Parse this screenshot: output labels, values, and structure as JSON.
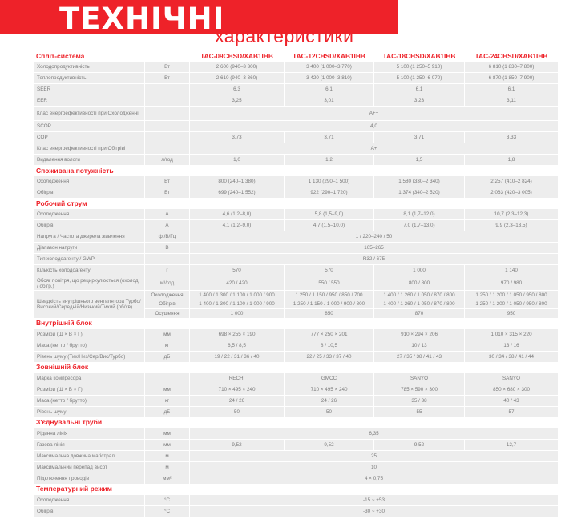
{
  "header": {
    "title_main": "ТЕХНІЧНІ",
    "title_sub": "характеристики"
  },
  "models": [
    "TAC-09CHSD/XAB1IHB",
    "TAC-12CHSD/XAB1IHB",
    "TAC-18CHSD/XAB1IHB",
    "TAC-24CHSD/XAB1IHB"
  ],
  "colors": {
    "accent": "#ee2229",
    "row_bg": "#ededed",
    "text": "#7a7a7a"
  },
  "sections": [
    {
      "title": "Спліт-система",
      "show_models": true,
      "rows": [
        {
          "label": "Холодопродуктивність",
          "unit": "Вт",
          "values": [
            "2 600 (940–3 300)",
            "3 400 (1 000–3 770)",
            "5 100 (1 250–5 910)",
            "6 810 (1 830–7 800)"
          ]
        },
        {
          "label": "Теплопродуктивність",
          "unit": "Вт",
          "values": [
            "2 610 (940–3 360)",
            "3 420 (1 000–3 810)",
            "5 100 (1 250–6 070)",
            "6 870 (1 850–7 900)"
          ]
        },
        {
          "label": "SEER",
          "unit": "",
          "values": [
            "6,3",
            "6,1",
            "6,1",
            "6,1"
          ]
        },
        {
          "label": "EER",
          "unit": "",
          "values": [
            "3,25",
            "3,01",
            "3,23",
            "3,11"
          ]
        },
        {
          "label": "Клас енергоефективності при Охолодженні",
          "unit": "",
          "values": [
            "A++"
          ],
          "tall": true
        },
        {
          "label": "SCOP",
          "unit": "",
          "values": [
            "4,0"
          ]
        },
        {
          "label": "COP",
          "unit": "",
          "values": [
            "3,73",
            "3,71",
            "3,71",
            "3,33"
          ]
        },
        {
          "label": "Клас енергоефективності при Обігріві",
          "unit": "",
          "values": [
            "A+"
          ]
        },
        {
          "label": "Видалення вологи",
          "unit": "л/год",
          "values": [
            "1,0",
            "1,2",
            "1,5",
            "1,8"
          ]
        }
      ]
    },
    {
      "title": "Споживана потужність",
      "rows": [
        {
          "label": "Охолодження",
          "unit": "Вт",
          "values": [
            "800 (240–1 380)",
            "1 130 (290–1 500)",
            "1 580 (330–2 340)",
            "2 257 (410–2 824)"
          ]
        },
        {
          "label": "Обігрів",
          "unit": "Вт",
          "values": [
            "699 (240–1 552)",
            "922 (290–1 720)",
            "1 374 (340–2 520)",
            "2 063 (420–3 005)"
          ]
        }
      ]
    },
    {
      "title": "Робочий струм",
      "rows": [
        {
          "label": "Охолодження",
          "unit": "А",
          "values": [
            "4,6 (1,2–8,0)",
            "5,8 (1,5–9,0)",
            "8,1 (1,7–12,0)",
            "10,7 (2,3–12,3)"
          ]
        },
        {
          "label": "Обігрів",
          "unit": "А",
          "values": [
            "4,1 (1,2–9,0)",
            "4,7 (1,5–10,0)",
            "7,0 (1,7–13,0)",
            "9,9 (2,3–13,5)"
          ]
        },
        {
          "label": "Напруга / Частота джерела живлення",
          "unit": "ф./В/Гц",
          "values": [
            "1 / 220–240 / 50"
          ]
        },
        {
          "label": "Діапазон напруги",
          "unit": "В",
          "values": [
            "165–265"
          ]
        },
        {
          "label": "Тип холодоагенту / GWP",
          "unit": "",
          "values": [
            "R32 / 675"
          ]
        },
        {
          "label": "Кількість холодоагенту",
          "unit": "г",
          "values": [
            "570",
            "570",
            "1 000",
            "1 140"
          ]
        },
        {
          "label": "Обсяг повітря, що рециркулюється (охолод. / обігр.)",
          "unit": "м³/год",
          "values": [
            "420 / 420",
            "550 / 550",
            "800 / 800",
            "970 / 980"
          ],
          "tall": true
        }
      ],
      "fan": {
        "label": "Швидкість внутрішнього вентилятора Турбо/Високий/Середній/Низький/Тихий (об/хв)",
        "modes": [
          {
            "mode": "Охолодження",
            "values": [
              "1 400 / 1 300 / 1 100 / 1 000 / 900",
              "1 250 / 1 150 / 950 / 850 / 700",
              "1 400 / 1 260 / 1 050 / 870 / 800",
              "1 250 / 1 200 / 1 050 / 950 / 800"
            ]
          },
          {
            "mode": "Обігрів",
            "values": [
              "1 400 / 1 300 / 1 100 / 1 000 / 900",
              "1 250 / 1 150 / 1 000 / 900 / 800",
              "1 400 / 1 260 / 1 050 / 870 / 800",
              "1 250 / 1 200 / 1 050 / 950 / 800"
            ]
          },
          {
            "mode": "Осушення",
            "values": [
              "1 000",
              "850",
              "870",
              "950"
            ]
          }
        ]
      }
    },
    {
      "title": "Внутрішній блок",
      "rows": [
        {
          "label": "Розміри (Ш × В × Г)",
          "unit": "мм",
          "values": [
            "698 × 255 × 190",
            "777 × 250 × 201",
            "910 × 294 × 206",
            "1 010 × 315 × 220"
          ]
        },
        {
          "label": "Маса (нетто / брутто)",
          "unit": "кг",
          "values": [
            "6,5 / 8,5",
            "8 / 10,5",
            "10 / 13",
            "13 / 16"
          ]
        },
        {
          "label": "Рівень шуму (Тих/Низ/Сер/Вис/Турбо)",
          "unit": "дБ",
          "values": [
            "19 / 22 / 31 / 36 / 40",
            "22 / 25 / 33 / 37 / 40",
            "27 / 35 / 38 / 41 / 43",
            "30 / 34 / 38 / 41 / 44"
          ]
        }
      ]
    },
    {
      "title": "Зовнішній блок",
      "rows": [
        {
          "label": "Марка компресора",
          "unit": "",
          "values": [
            "RECHI",
            "GMCC",
            "SANYO",
            "SANYO"
          ]
        },
        {
          "label": "Розміри (Ш × В × Г)",
          "unit": "мм",
          "values": [
            "710 × 495 × 240",
            "710 × 495 × 240",
            "785 × 590 × 300",
            "850 × 680 × 300"
          ]
        },
        {
          "label": "Маса (нетто / брутто)",
          "unit": "кг",
          "values": [
            "24 / 26",
            "24 / 26",
            "35 / 38",
            "40 / 43"
          ]
        },
        {
          "label": "Рівень шуму",
          "unit": "дБ",
          "values": [
            "50",
            "50",
            "55",
            "57"
          ]
        }
      ]
    },
    {
      "title": "З'єднувальні труби",
      "rows": [
        {
          "label": "Рідинна лінія",
          "unit": "мм",
          "values": [
            "6,35"
          ]
        },
        {
          "label": "Газова лінія",
          "unit": "мм",
          "values": [
            "9,52",
            "9,52",
            "9,52",
            "12,7"
          ]
        },
        {
          "label": "Максимальна довжина магістралі",
          "unit": "м",
          "values": [
            "25"
          ]
        },
        {
          "label": "Максимальний перепад висот",
          "unit": "м",
          "values": [
            "10"
          ]
        },
        {
          "label": "Підключення проводів",
          "unit": "мм²",
          "values": [
            "4 × 0,75"
          ]
        }
      ]
    },
    {
      "title": "Температурний режим",
      "rows": [
        {
          "label": "Охолодження",
          "unit": "°C",
          "values": [
            "-15 ~ +53"
          ]
        },
        {
          "label": "Обігрів",
          "unit": "°C",
          "values": [
            "-30 ~ +30"
          ]
        }
      ]
    }
  ]
}
